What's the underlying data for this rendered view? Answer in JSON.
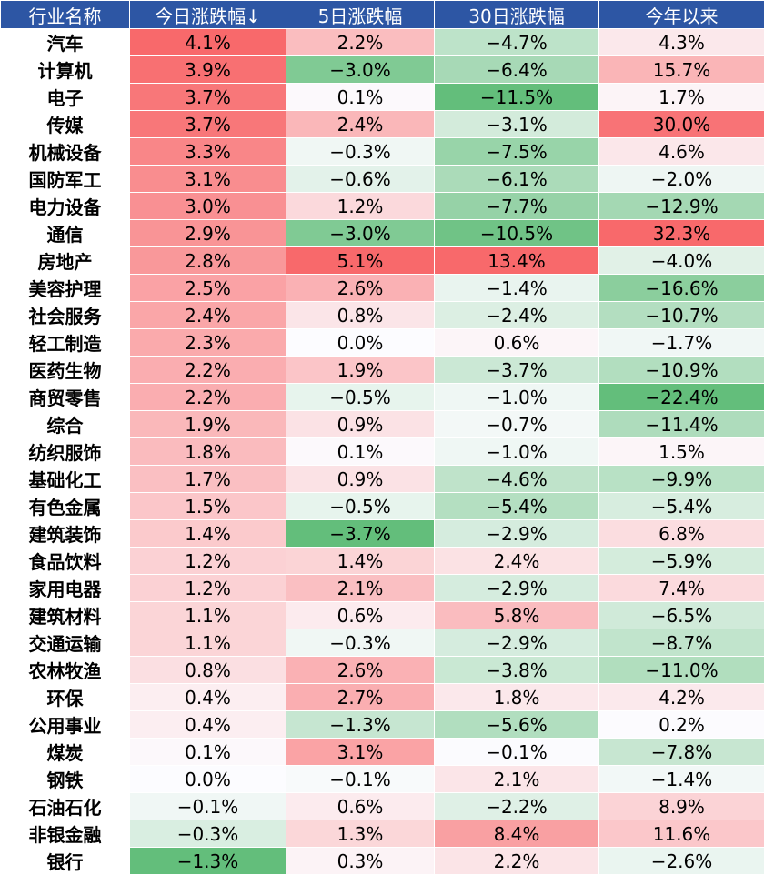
{
  "chart_data": {
    "type": "heatmap",
    "columns": [
      "行业名称",
      "今日涨跌幅↓",
      "5日涨跌幅",
      "30日涨跌幅",
      "今年以来"
    ],
    "rows": [
      {
        "name": "汽车",
        "values": [
          "4.1%",
          "2.2%",
          "−4.7%",
          "4.3%"
        ]
      },
      {
        "name": "计算机",
        "values": [
          "3.9%",
          "−3.0%",
          "−6.4%",
          "15.7%"
        ]
      },
      {
        "name": "电子",
        "values": [
          "3.7%",
          "0.1%",
          "−11.5%",
          "1.7%"
        ]
      },
      {
        "name": "传媒",
        "values": [
          "3.7%",
          "2.4%",
          "−3.1%",
          "30.0%"
        ]
      },
      {
        "name": "机械设备",
        "values": [
          "3.3%",
          "−0.3%",
          "−7.5%",
          "4.6%"
        ]
      },
      {
        "name": "国防军工",
        "values": [
          "3.1%",
          "−0.6%",
          "−6.1%",
          "−2.0%"
        ]
      },
      {
        "name": "电力设备",
        "values": [
          "3.0%",
          "1.2%",
          "−7.7%",
          "−12.9%"
        ]
      },
      {
        "name": "通信",
        "values": [
          "2.9%",
          "−3.0%",
          "−10.5%",
          "32.3%"
        ]
      },
      {
        "name": "房地产",
        "values": [
          "2.8%",
          "5.1%",
          "13.4%",
          "−4.0%"
        ]
      },
      {
        "name": "美容护理",
        "values": [
          "2.5%",
          "2.6%",
          "−1.4%",
          "−16.6%"
        ]
      },
      {
        "name": "社会服务",
        "values": [
          "2.4%",
          "0.8%",
          "−2.4%",
          "−10.7%"
        ]
      },
      {
        "name": "轻工制造",
        "values": [
          "2.3%",
          "0.0%",
          "0.6%",
          "−1.7%"
        ]
      },
      {
        "name": "医药生物",
        "values": [
          "2.2%",
          "1.9%",
          "−3.7%",
          "−10.9%"
        ]
      },
      {
        "name": "商贸零售",
        "values": [
          "2.2%",
          "−0.5%",
          "−1.0%",
          "−22.4%"
        ]
      },
      {
        "name": "综合",
        "values": [
          "1.9%",
          "0.9%",
          "−0.7%",
          "−11.4%"
        ]
      },
      {
        "name": "纺织服饰",
        "values": [
          "1.8%",
          "0.1%",
          "−1.0%",
          "1.5%"
        ]
      },
      {
        "name": "基础化工",
        "values": [
          "1.7%",
          "0.9%",
          "−4.6%",
          "−9.9%"
        ]
      },
      {
        "name": "有色金属",
        "values": [
          "1.5%",
          "−0.5%",
          "−5.4%",
          "−5.4%"
        ]
      },
      {
        "name": "建筑装饰",
        "values": [
          "1.4%",
          "−3.7%",
          "−2.9%",
          "6.8%"
        ]
      },
      {
        "name": "食品饮料",
        "values": [
          "1.2%",
          "1.4%",
          "2.4%",
          "−5.9%"
        ]
      },
      {
        "name": "家用电器",
        "values": [
          "1.2%",
          "2.1%",
          "−2.9%",
          "7.4%"
        ]
      },
      {
        "name": "建筑材料",
        "values": [
          "1.1%",
          "0.6%",
          "5.8%",
          "−6.5%"
        ]
      },
      {
        "name": "交通运输",
        "values": [
          "1.1%",
          "−0.3%",
          "−2.9%",
          "−8.7%"
        ]
      },
      {
        "name": "农林牧渔",
        "values": [
          "0.8%",
          "2.6%",
          "−3.8%",
          "−11.0%"
        ]
      },
      {
        "name": "环保",
        "values": [
          "0.4%",
          "2.7%",
          "1.8%",
          "4.2%"
        ]
      },
      {
        "name": "公用事业",
        "values": [
          "0.4%",
          "−1.3%",
          "−5.6%",
          "0.2%"
        ]
      },
      {
        "name": "煤炭",
        "values": [
          "0.1%",
          "3.1%",
          "−0.1%",
          "−7.8%"
        ]
      },
      {
        "name": "钢铁",
        "values": [
          "0.0%",
          "−0.1%",
          "2.1%",
          "−1.4%"
        ]
      },
      {
        "name": "石油石化",
        "values": [
          "−0.1%",
          "0.6%",
          "−2.2%",
          "8.9%"
        ]
      },
      {
        "name": "非银金融",
        "values": [
          "−0.3%",
          "1.3%",
          "8.4%",
          "11.6%"
        ]
      },
      {
        "name": "银行",
        "values": [
          "−1.3%",
          "0.3%",
          "2.2%",
          "−2.6%"
        ]
      }
    ],
    "colors": {
      "header_bg": "#2d56a4",
      "header_text": "#ffffff",
      "positive": "#f8696b",
      "neutral": "#fcfcff",
      "negative": "#63be7b"
    }
  }
}
